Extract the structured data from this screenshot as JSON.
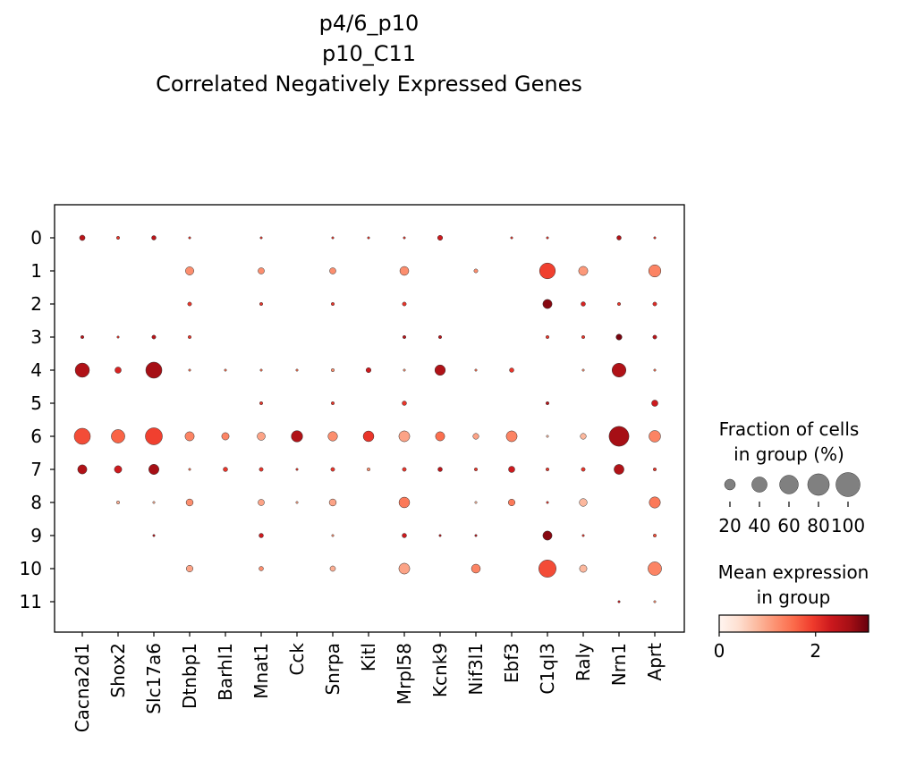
{
  "chart_data": {
    "type": "dotplot",
    "title_lines": [
      "p4/6_p10",
      "p10_C11",
      "Correlated Negatively Expressed Genes"
    ],
    "genes": [
      "Cacna2d1",
      "Shox2",
      "Slc17a6",
      "Dtnbp1",
      "Barhl1",
      "Mnat1",
      "Cck",
      "Snrpa",
      "Kitl",
      "Mrpl58",
      "Kcnk9",
      "Nif3l1",
      "Ebf3",
      "C1ql3",
      "Raly",
      "Nrn1",
      "Aprt"
    ],
    "groups": [
      "0",
      "1",
      "2",
      "3",
      "4",
      "5",
      "6",
      "7",
      "8",
      "9",
      "10",
      "11"
    ],
    "fraction_pct": [
      [
        6,
        2,
        4,
        1,
        0,
        1,
        0,
        1,
        1,
        1,
        5,
        0,
        1,
        1,
        0,
        4,
        1
      ],
      [
        0,
        0,
        0,
        14,
        0,
        8,
        0,
        8,
        0,
        16,
        0,
        3,
        0,
        50,
        17,
        0,
        30
      ],
      [
        0,
        0,
        0,
        3,
        0,
        2,
        0,
        2,
        0,
        3,
        0,
        0,
        0,
        17,
        4,
        2,
        3
      ],
      [
        2,
        1,
        3,
        2,
        0,
        0,
        0,
        0,
        0,
        2,
        2,
        0,
        0,
        2,
        2,
        7,
        3
      ],
      [
        41,
        8,
        52,
        1,
        1,
        1,
        1,
        2,
        5,
        1,
        22,
        1,
        4,
        0,
        1,
        39,
        1
      ],
      [
        0,
        0,
        0,
        0,
        0,
        2,
        0,
        2,
        0,
        4,
        0,
        0,
        0,
        2,
        0,
        0,
        8
      ],
      [
        52,
        37,
        58,
        17,
        11,
        13,
        26,
        18,
        23,
        24,
        17,
        7,
        24,
        1,
        7,
        79,
        27
      ],
      [
        17,
        11,
        21,
        1,
        4,
        3,
        1,
        3,
        2,
        3,
        4,
        2,
        8,
        2,
        3,
        20,
        2
      ],
      [
        0,
        2,
        1,
        10,
        0,
        8,
        1,
        10,
        0,
        23,
        0,
        1,
        9,
        1,
        12,
        0,
        25
      ],
      [
        0,
        0,
        1,
        0,
        0,
        4,
        0,
        1,
        0,
        4,
        1,
        1,
        0,
        17,
        1,
        0,
        2
      ],
      [
        0,
        0,
        0,
        9,
        0,
        4,
        0,
        6,
        0,
        24,
        0,
        16,
        0,
        60,
        11,
        0,
        37
      ],
      [
        0,
        0,
        0,
        0,
        0,
        0,
        0,
        0,
        0,
        0,
        0,
        0,
        0,
        0,
        0,
        1,
        1
      ]
    ],
    "mean_expression": [
      [
        2.5,
        2.0,
        2.5,
        2.0,
        0,
        2.0,
        0,
        2.0,
        2.0,
        2.0,
        2.3,
        0,
        2.0,
        2.0,
        0,
        2.6,
        2.0
      ],
      [
        0,
        0,
        0,
        1.2,
        0,
        1.2,
        0,
        1.2,
        0,
        1.2,
        0,
        1.2,
        0,
        1.9,
        1.1,
        0,
        1.3
      ],
      [
        0,
        0,
        0,
        2.0,
        0,
        2.0,
        0,
        2.0,
        0,
        2.0,
        0,
        2.0,
        0,
        2.9,
        2.2,
        2.0,
        2.1
      ],
      [
        2.5,
        2.0,
        2.5,
        2.0,
        0,
        2.0,
        0,
        2.0,
        2.0,
        2.5,
        2.5,
        0,
        2.0,
        2.0,
        2.0,
        3.0,
        2.5
      ],
      [
        2.6,
        2.2,
        2.7,
        1.5,
        1.5,
        1.5,
        1.5,
        1.2,
        2.3,
        1.2,
        2.6,
        1.5,
        2.0,
        0,
        1.2,
        2.6,
        1.5
      ],
      [
        0,
        0,
        0,
        0,
        0,
        2.0,
        0,
        2.0,
        0,
        2.0,
        0,
        0,
        0,
        2.5,
        0,
        0,
        2.3
      ],
      [
        1.8,
        1.6,
        1.9,
        1.3,
        1.3,
        1.0,
        2.6,
        1.2,
        2.0,
        1.0,
        1.5,
        1.0,
        1.3,
        0.8,
        0.8,
        2.7,
        1.3
      ],
      [
        2.6,
        2.3,
        2.7,
        1.5,
        2.0,
        2.0,
        2.0,
        2.0,
        1.2,
        2.0,
        2.5,
        2.0,
        2.3,
        2.0,
        2.0,
        2.6,
        2.0
      ],
      [
        0,
        0.9,
        0.9,
        1.2,
        0,
        1.0,
        1.0,
        1.0,
        0,
        1.4,
        1.3,
        0.8,
        1.4,
        2.0,
        0.8,
        0,
        1.4
      ],
      [
        0,
        0,
        2.5,
        0.9,
        0,
        2.3,
        0,
        1.2,
        0,
        2.3,
        2.5,
        2.5,
        0,
        2.9,
        2.0,
        0,
        1.8
      ],
      [
        0,
        0,
        0,
        1.0,
        0,
        1.2,
        0,
        0.9,
        0,
        1.0,
        0,
        1.3,
        0,
        1.8,
        0.8,
        0,
        1.3
      ],
      [
        0,
        0,
        0,
        0,
        0,
        0,
        0,
        0,
        0,
        0,
        0,
        0,
        0,
        0,
        0,
        2.3,
        1.2
      ]
    ],
    "size_legend": {
      "title_lines": [
        "Fraction of cells",
        "in group (%)"
      ],
      "values": [
        20,
        40,
        60,
        80,
        100
      ]
    },
    "color_legend": {
      "title_lines": [
        "Mean expression",
        "in group"
      ],
      "range": [
        0,
        3.1
      ],
      "ticks": [
        0,
        2
      ],
      "colormap": "Reds",
      "stops": [
        "#fff5f0",
        "#fee0d2",
        "#fcbba1",
        "#fc9272",
        "#fb6a4a",
        "#ef3b2c",
        "#cb181d",
        "#a50f15",
        "#67000d"
      ]
    }
  }
}
